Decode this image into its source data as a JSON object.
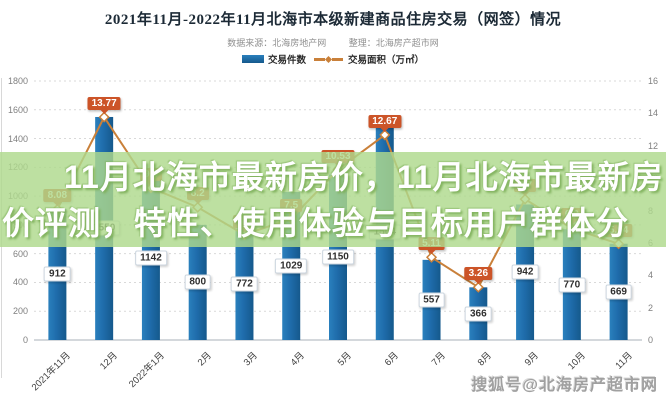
{
  "header": {
    "title": "2021年11月-2022年11月北海市本级新建商品住房交易（网签）情况",
    "source": "数据来源：北海房地产网",
    "editor": "整理：北海房产超市网"
  },
  "legend": {
    "bar_label": "交易件数",
    "line_label": "交易面积（万㎡）"
  },
  "overlay": {
    "headline": "11月北海市最新房价，11月北海市最新房价评测，特性、使用体验与目标用户群体分",
    "bg_color": "#aedd8c"
  },
  "watermark": "搜狐号@北海房产超市网",
  "chart_data": {
    "type": "bar+line",
    "title": "2021年11月-2022年11月北海市本级新建商品住房交易（网签）情况",
    "categories": [
      "2021年11月",
      "12月",
      "2022年1月",
      "2月",
      "3月",
      "4月",
      "5月",
      "6月",
      "7月",
      "8月",
      "9月",
      "10月",
      "11月"
    ],
    "series": [
      {
        "name": "交易件数",
        "chart": "bar",
        "axis": "left",
        "color_top": "#2a80bd",
        "color_bottom": "#15598c",
        "values": [
          912,
          1550,
          1142,
          800,
          772,
          1029,
          1150,
          1504,
          557,
          366,
          942,
          770,
          669
        ],
        "labels": [
          "912",
          "1550",
          "1142",
          "800",
          "772",
          "1029",
          "1150",
          "1504",
          "557",
          "366",
          "942",
          "770",
          "669"
        ]
      },
      {
        "name": "交易面积（万㎡）",
        "chart": "line",
        "axis": "right",
        "color": "#c9803a",
        "marker": "diamond",
        "label_bg": "#cc5428",
        "values": [
          8.08,
          13.77,
          9.4,
          8.2,
          6.5,
          7.5,
          10.53,
          12.67,
          5.11,
          3.26,
          8.7,
          6.9,
          5.94
        ],
        "labels": [
          "8.08",
          "13.77",
          "9.4",
          "8.2",
          "6.5",
          "7.5",
          "10.53",
          "12.67",
          "5.11",
          "3.26",
          "8.7",
          "6.9",
          "5.94"
        ]
      }
    ],
    "left_axis": {
      "min": 0,
      "max": 1800,
      "step": 200
    },
    "right_axis": {
      "min": 0,
      "max": 16,
      "step": 2
    },
    "grid": "horizontal-dashed",
    "legend_position": "top"
  }
}
